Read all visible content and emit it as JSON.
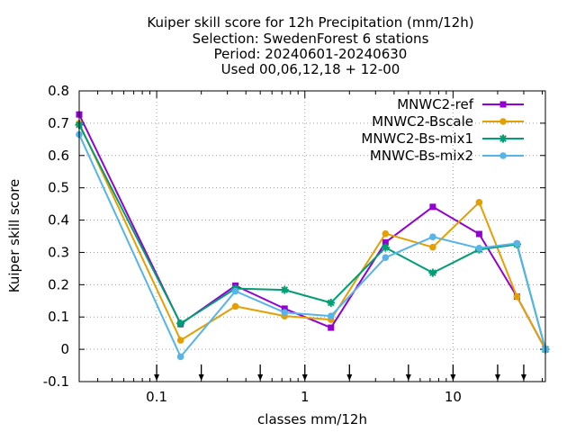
{
  "chart_data": {
    "type": "line",
    "title_lines": [
      "Kuiper skill score  for 12h Precipitation (mm/12h)",
      "Selection: SwedenForest      6 stations",
      "Period: 20240601-20240630",
      "Used 00,06,12,18 + 12-00"
    ],
    "xlabel": "classes mm/12h",
    "ylabel": "Kuiper skill score",
    "x_scale": "log",
    "xlim": [
      0.03,
      42
    ],
    "ylim": [
      -0.1,
      0.8
    ],
    "x_ticks": [
      {
        "value": 0.1,
        "label": "0.1"
      },
      {
        "value": 1,
        "label": "1"
      },
      {
        "value": 10,
        "label": "10"
      }
    ],
    "y_ticks": [
      {
        "value": -0.1,
        "label": "-0.1"
      },
      {
        "value": 0,
        "label": "0"
      },
      {
        "value": 0.1,
        "label": "0.1"
      },
      {
        "value": 0.2,
        "label": "0.2"
      },
      {
        "value": 0.3,
        "label": "0.3"
      },
      {
        "value": 0.4,
        "label": "0.4"
      },
      {
        "value": 0.5,
        "label": "0.5"
      },
      {
        "value": 0.6,
        "label": "0.6"
      },
      {
        "value": 0.7,
        "label": "0.7"
      },
      {
        "value": 0.8,
        "label": "0.8"
      }
    ],
    "class_arrows": [
      0.1,
      0.2,
      0.5,
      1,
      2,
      5,
      10,
      20,
      30
    ],
    "grid": true,
    "legend_position": "top-right",
    "x": [
      0.03,
      0.145,
      0.34,
      0.73,
      1.5,
      3.5,
      7.3,
      15,
      27,
      42
    ],
    "series": [
      {
        "name": "MNWC2-ref",
        "color": "#9400d3",
        "marker": "square",
        "values": [
          0.727,
          0.078,
          0.197,
          0.126,
          0.067,
          0.331,
          0.441,
          0.357,
          0.163,
          0.0
        ]
      },
      {
        "name": "MNWC2-Bscale",
        "color": "#e69f00",
        "marker": "circle",
        "values": [
          0.7,
          0.028,
          0.133,
          0.103,
          0.092,
          0.358,
          0.316,
          0.455,
          0.163,
          0.0
        ]
      },
      {
        "name": "MNWC2-Bs-mix1",
        "color": "#009e73",
        "marker": "star",
        "values": [
          0.695,
          0.08,
          0.188,
          0.184,
          0.144,
          0.315,
          0.237,
          0.309,
          0.325,
          0.0
        ]
      },
      {
        "name": "MNWC-Bs-mix2",
        "color": "#56b4e9",
        "marker": "circle",
        "values": [
          0.665,
          -0.023,
          0.18,
          0.114,
          0.103,
          0.284,
          0.348,
          0.313,
          0.328,
          0.0
        ]
      }
    ]
  }
}
